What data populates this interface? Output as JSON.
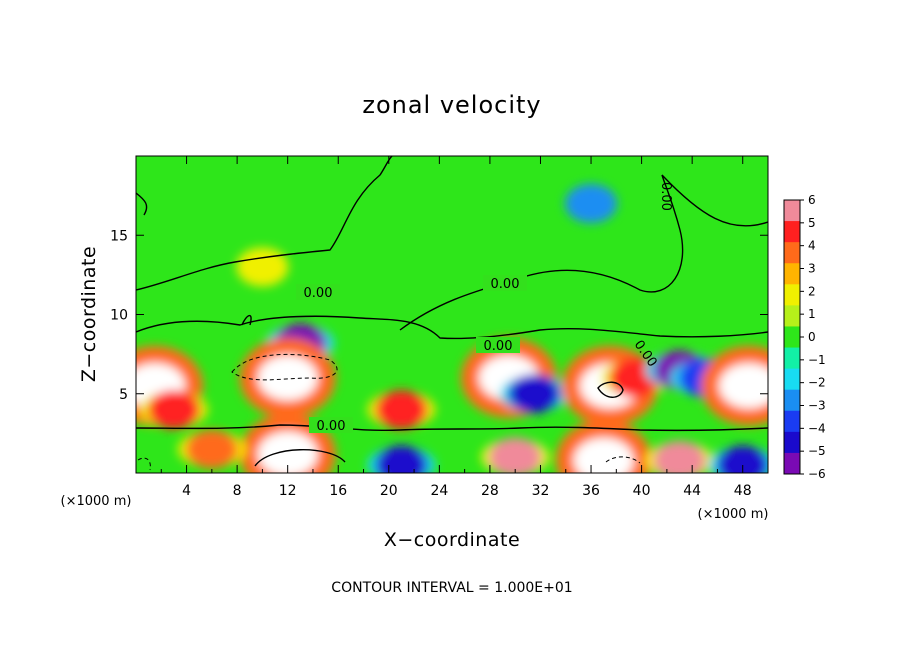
{
  "chart_data": {
    "type": "heatmap",
    "title": "zonal velocity",
    "xlabel": "X−coordinate",
    "ylabel": "Z−coordinate",
    "x_unit": "(×1000 m)",
    "y_unit": "(×1000 m)",
    "xlim": [
      0,
      50
    ],
    "ylim": [
      0,
      20
    ],
    "x_ticks": [
      "4",
      "8",
      "12",
      "16",
      "20",
      "24",
      "28",
      "32",
      "36",
      "40",
      "44",
      "48"
    ],
    "y_ticks": [
      "5",
      "10",
      "15"
    ],
    "colorbar": {
      "range": [
        -6,
        6
      ],
      "labels": [
        "6",
        "5",
        "4",
        "3",
        "2",
        "1",
        "0",
        "−1",
        "−2",
        "−3",
        "−4",
        "−5",
        "−6"
      ],
      "colors": [
        "#f08a9a",
        "#ff2020",
        "#ff6a1a",
        "#ffb400",
        "#f0f000",
        "#b6f01a",
        "#2ee61a",
        "#12f0a6",
        "#18dcf2",
        "#1a8ef2",
        "#1a3cf2",
        "#1a0acc",
        "#7a0ab4"
      ]
    },
    "contour_label": "0.00",
    "contour_interval": "CONTOUR INTERVAL = 1.000E+01",
    "background_value": 0.5,
    "features": [
      {
        "x": 10,
        "z": 13,
        "value": 2.5
      },
      {
        "x": 36,
        "z": 17,
        "value": -2.8
      },
      {
        "x": 13,
        "z": 8.2,
        "value": -5.5
      },
      {
        "x": 12,
        "z": 6,
        "value": 8
      },
      {
        "x": 1.5,
        "z": 5.5,
        "value": 8
      },
      {
        "x": 3,
        "z": 4,
        "value": 5
      },
      {
        "x": 21,
        "z": 4,
        "value": 5
      },
      {
        "x": 29.5,
        "z": 6,
        "value": 8
      },
      {
        "x": 31.5,
        "z": 5,
        "value": -5
      },
      {
        "x": 37.5,
        "z": 5.5,
        "value": 8
      },
      {
        "x": 39.5,
        "z": 6,
        "value": 5
      },
      {
        "x": 43,
        "z": 6.5,
        "value": -5.5
      },
      {
        "x": 45,
        "z": 6,
        "value": -4
      },
      {
        "x": 48.5,
        "z": 5.5,
        "value": 8
      },
      {
        "x": 12,
        "z": 1.2,
        "value": 8
      },
      {
        "x": 6,
        "z": 1.5,
        "value": 4
      },
      {
        "x": 21,
        "z": 0.5,
        "value": -5
      },
      {
        "x": 30,
        "z": 1,
        "value": 6
      },
      {
        "x": 37,
        "z": 0.8,
        "value": 8
      },
      {
        "x": 43,
        "z": 0.8,
        "value": 6
      },
      {
        "x": 48,
        "z": 0.5,
        "value": -5
      }
    ]
  }
}
